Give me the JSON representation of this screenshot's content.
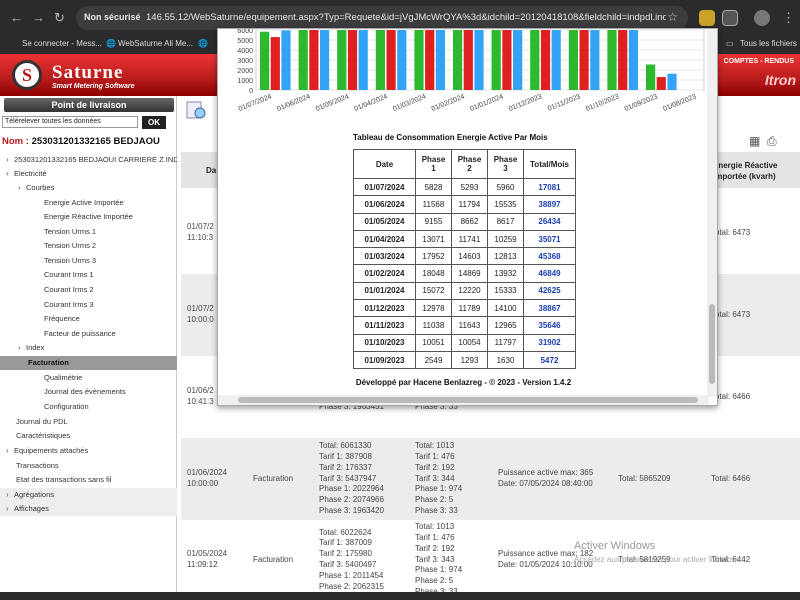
{
  "browser": {
    "security": "Non sécurisé",
    "url": "146.55.12/WebSaturne/equipement.aspx?Typ=Requete&id=jVgJMcWrQYA%3d&idchild=20120418108&fieldchild=indpdl.ind_i...",
    "bookmarks": [
      "Se connecter - Mess...",
      "WebSaturne Ali Me...",
      "Tous les fichiers"
    ]
  },
  "header": {
    "logo_letter": "S",
    "logo_title": "Saturne",
    "logo_subtitle": "Smart Metering Software",
    "right_text": "COMPTES - RENDUS",
    "brand": "Itron"
  },
  "sidebar": {
    "title": "Point de livraison",
    "select_value": "Télérelever toutes les données",
    "ok_label": "OK",
    "nom_label": "Nom :",
    "nom_value": "253031201332165 BEDJAOU",
    "items": [
      {
        "label": "253031201332165 BEDJAOUI CARRIERE Z.IND",
        "indent": 0,
        "chev": "›",
        "type": "normal"
      },
      {
        "label": "Electricité",
        "indent": 0,
        "chev": "›",
        "type": "normal"
      },
      {
        "label": "Courbes",
        "indent": 1,
        "chev": "›",
        "type": "normal"
      },
      {
        "label": "Energie Active Importée",
        "indent": 2,
        "chev": "",
        "type": "normal"
      },
      {
        "label": "Energie Réactive Importée",
        "indent": 2,
        "chev": "",
        "type": "normal"
      },
      {
        "label": "Tension Urms 1",
        "indent": 2,
        "chev": "",
        "type": "normal"
      },
      {
        "label": "Tension Urms 2",
        "indent": 2,
        "chev": "",
        "type": "normal"
      },
      {
        "label": "Tension Urms 3",
        "indent": 2,
        "chev": "",
        "type": "normal"
      },
      {
        "label": "Courant Irms 1",
        "indent": 2,
        "chev": "",
        "type": "normal"
      },
      {
        "label": "Courant Irms 2",
        "indent": 2,
        "chev": "",
        "type": "normal"
      },
      {
        "label": "Courant Irms 3",
        "indent": 2,
        "chev": "",
        "type": "normal"
      },
      {
        "label": "Fréquence",
        "indent": 2,
        "chev": "",
        "type": "normal"
      },
      {
        "label": "Facteur de puissance",
        "indent": 2,
        "chev": "",
        "type": "normal"
      },
      {
        "label": "Index",
        "indent": 1,
        "chev": "›",
        "type": "normal"
      },
      {
        "label": "Facturation",
        "indent": 1,
        "chev": "",
        "type": "sel"
      },
      {
        "label": "Qualimétrie",
        "indent": 2,
        "chev": "",
        "type": "normal"
      },
      {
        "label": "Journal des évènements",
        "indent": 2,
        "chev": "",
        "type": "normal"
      },
      {
        "label": "Configuration",
        "indent": 2,
        "chev": "",
        "type": "normal"
      },
      {
        "label": "Journal du PDL",
        "indent": 0,
        "chev": "",
        "type": "normal"
      },
      {
        "label": "Caractéristiques",
        "indent": 0,
        "chev": "",
        "type": "normal"
      },
      {
        "label": "Equipements attachés",
        "indent": 0,
        "chev": "›",
        "type": "normal"
      },
      {
        "label": "Transactions",
        "indent": 0,
        "chev": "",
        "type": "normal"
      },
      {
        "label": "Etat des transactions sans fil",
        "indent": 0,
        "chev": "",
        "type": "normal"
      },
      {
        "label": "Agrégations",
        "indent": 0,
        "chev": "›",
        "type": "sect"
      },
      {
        "label": "Affichages",
        "indent": 0,
        "chev": "›",
        "type": "sect"
      }
    ]
  },
  "main": {
    "col_date": "Da",
    "col_reactive": "Energie Réactive\nimportée (kvarh)",
    "rows": [
      {
        "date": "01/07/2\n11:10:3",
        "type": "",
        "energy": "",
        "index": "",
        "puissance": "",
        "total": "",
        "react": "Total: 6473",
        "alt": false
      },
      {
        "date": "01/07/2\n10:00:0",
        "type": "",
        "energy": "",
        "index": "",
        "puissance": "",
        "total": "",
        "react": "Total: 6473",
        "alt": true
      },
      {
        "date": "01/06/2\n10:41:3",
        "type": "",
        "energy": "Phase 1: 2022985\nPhase 2: 2074967\nPhase 3: 1963451",
        "index": "Phase 1: 974\nPhase 2: 5\nPhase 3: 33",
        "puissance": "",
        "total": "",
        "react": "Total: 6466",
        "alt": false
      },
      {
        "date": "01/06/2024\n10:00:00",
        "type": "Facturation",
        "energy": "Total: 6061330\nTarif 1: 387908\nTarif 2: 176337\nTarif 3: 5437947\nPhase 1: 2022964\nPhase 2: 2074966\nPhase 3: 1963420",
        "index": "Total: 1013\nTarif 1: 476\nTarif 2: 192\nTarif 3: 344\nPhase 1: 974\nPhase 2: 5\nPhase 3: 33",
        "puissance": "Puissance active max: 365\nDate: 07/05/2024 08:40:00",
        "total": "Total: 5865209",
        "react": "Total: 6466",
        "alt": true
      },
      {
        "date": "01/05/2024\n11:09:12",
        "type": "Facturation",
        "energy": "Total: 6022624\nTarif 1: 387009\nTarif 2: 175980\nTarif 3: 5400497\nPhase 1: 2011454\nPhase 2: 2062315",
        "index": "Total: 1013\nTarif 1: 476\nTarif 2: 192\nTarif 3: 343\nPhase 1: 974\nPhase 2: 5\nPhase 3: 33",
        "puissance": "Puissance active max: 182\nDate: 01/05/2024 10:10:00",
        "total": "Total: 5819259",
        "react": "Total: 6442",
        "alt": false
      }
    ]
  },
  "popup": {
    "table_title": "Tableau de Consommation Energie Active Par Mois",
    "headers": [
      "Date",
      "Phase\n1",
      "Phase\n2",
      "Phase\n3",
      "Total/Mois"
    ],
    "rows": [
      [
        "01/07/2024",
        "5828",
        "5293",
        "5960",
        "17081"
      ],
      [
        "01/06/2024",
        "11568",
        "11794",
        "15535",
        "38897"
      ],
      [
        "01/05/2024",
        "9155",
        "8662",
        "8617",
        "26434"
      ],
      [
        "01/04/2024",
        "13071",
        "11741",
        "10259",
        "35071"
      ],
      [
        "01/03/2024",
        "17952",
        "14603",
        "12813",
        "45368"
      ],
      [
        "01/02/2024",
        "18048",
        "14869",
        "13932",
        "46849"
      ],
      [
        "01/01/2024",
        "15072",
        "12220",
        "15333",
        "42625"
      ],
      [
        "01/12/2023",
        "12978",
        "11789",
        "14100",
        "38867"
      ],
      [
        "01/11/2023",
        "11038",
        "11643",
        "12965",
        "35646"
      ],
      [
        "01/10/2023",
        "10051",
        "10054",
        "11797",
        "31902"
      ],
      [
        "01/09/2023",
        "2549",
        "1293",
        "1630",
        "5472"
      ]
    ],
    "footer": "Développé par Hacene Benlazreg - © 2023 - Version 1.4.2"
  },
  "chart_data": {
    "type": "bar",
    "y_ticks": [
      "6000",
      "5000",
      "4000",
      "3000",
      "2000",
      "1000",
      "0"
    ],
    "ylim": [
      0,
      6000
    ],
    "categories": [
      "01/07/2024",
      "01/06/2024",
      "01/05/2024",
      "01/04/2024",
      "01/03/2024",
      "01/02/2024",
      "01/01/2024",
      "01/12/2023",
      "01/11/2023",
      "01/10/2023",
      "01/09/2023",
      "01/08/2023"
    ],
    "series_colors": [
      "#2db82d",
      "#e02020",
      "#33a3f5"
    ],
    "series": [
      {
        "values": [
          5828,
          6000,
          6000,
          6000,
          6000,
          6000,
          6000,
          6000,
          6000,
          6000,
          2549,
          0
        ]
      },
      {
        "values": [
          5293,
          6000,
          6000,
          6000,
          6000,
          6000,
          6000,
          6000,
          6000,
          6000,
          1293,
          0
        ]
      },
      {
        "values": [
          5960,
          6000,
          6000,
          6000,
          6000,
          6000,
          6000,
          6000,
          6000,
          6000,
          1630,
          0
        ]
      }
    ]
  },
  "watermark": {
    "title": "Activer Windows",
    "subtitle": "Accédez aux paramètres pour activer Windows."
  }
}
